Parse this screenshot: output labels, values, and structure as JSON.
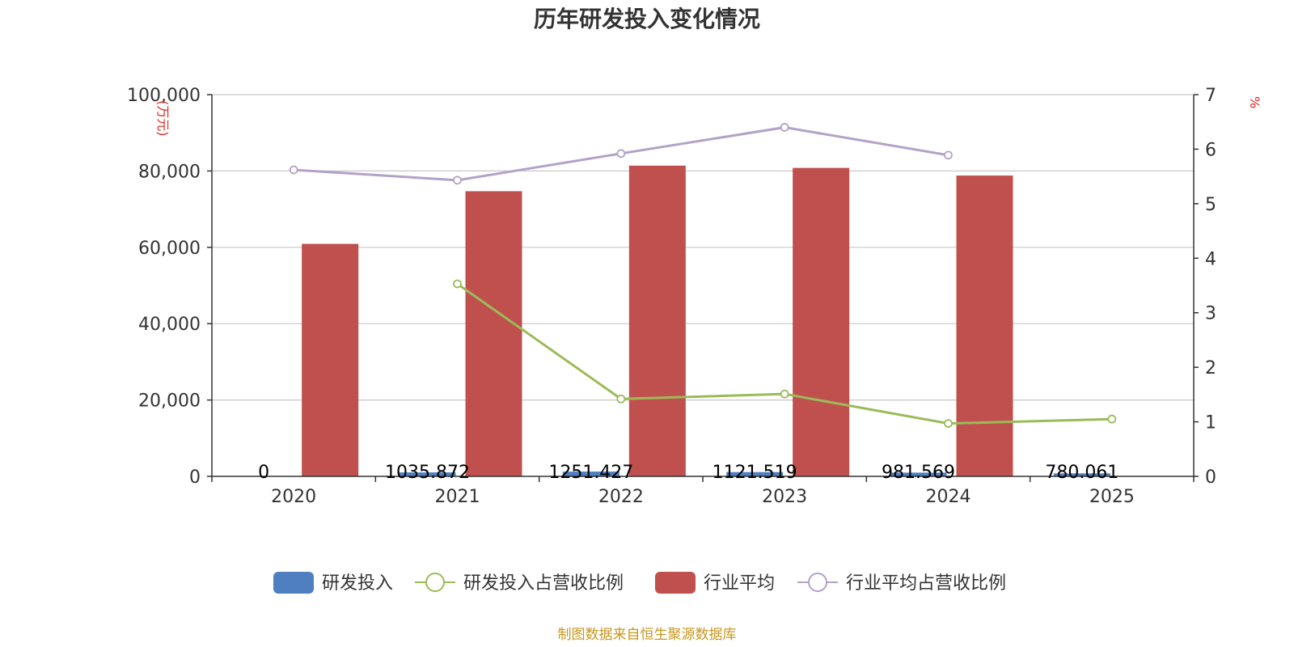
{
  "chart_data": {
    "type": "bar",
    "title": "历年研发投入变化情况",
    "source": "制图数据来自恒生聚源数据库",
    "categories": [
      "2020",
      "2021",
      "2022",
      "2023",
      "2024",
      "2025"
    ],
    "y_left": {
      "unit": "万元",
      "min": 0,
      "max": 100000,
      "ticks": [
        "0",
        "20,000",
        "40,000",
        "60,000",
        "80,000",
        "100,000"
      ]
    },
    "y_right": {
      "unit": "%",
      "min": 0,
      "max": 7,
      "ticks": [
        "0",
        "1",
        "2",
        "3",
        "4",
        "5",
        "6",
        "7"
      ]
    },
    "grid": true,
    "legend_position": "bottom",
    "series": [
      {
        "name": "研发投入",
        "type": "bar",
        "axis": "left",
        "color": "#4f7fc0",
        "values": [
          0,
          1035.872,
          1251.427,
          1121.519,
          981.569,
          780.061
        ],
        "labels": [
          "0",
          "1035.872",
          "1251.427",
          "1121.519",
          "981.569",
          "780.061"
        ]
      },
      {
        "name": "研发投入占营收比例",
        "type": "line",
        "axis": "right",
        "color": "#9bbb59",
        "values": [
          null,
          3.53,
          1.42,
          1.51,
          0.97,
          1.05
        ]
      },
      {
        "name": "行业平均",
        "type": "bar",
        "axis": "left",
        "color": "#c0504d",
        "values": [
          60900,
          74700,
          81400,
          80800,
          78800,
          null
        ]
      },
      {
        "name": "行业平均占营收比例",
        "type": "line",
        "axis": "right",
        "color": "#b3a2c7",
        "values": [
          5.62,
          5.43,
          5.92,
          6.4,
          5.89,
          null
        ]
      }
    ]
  }
}
